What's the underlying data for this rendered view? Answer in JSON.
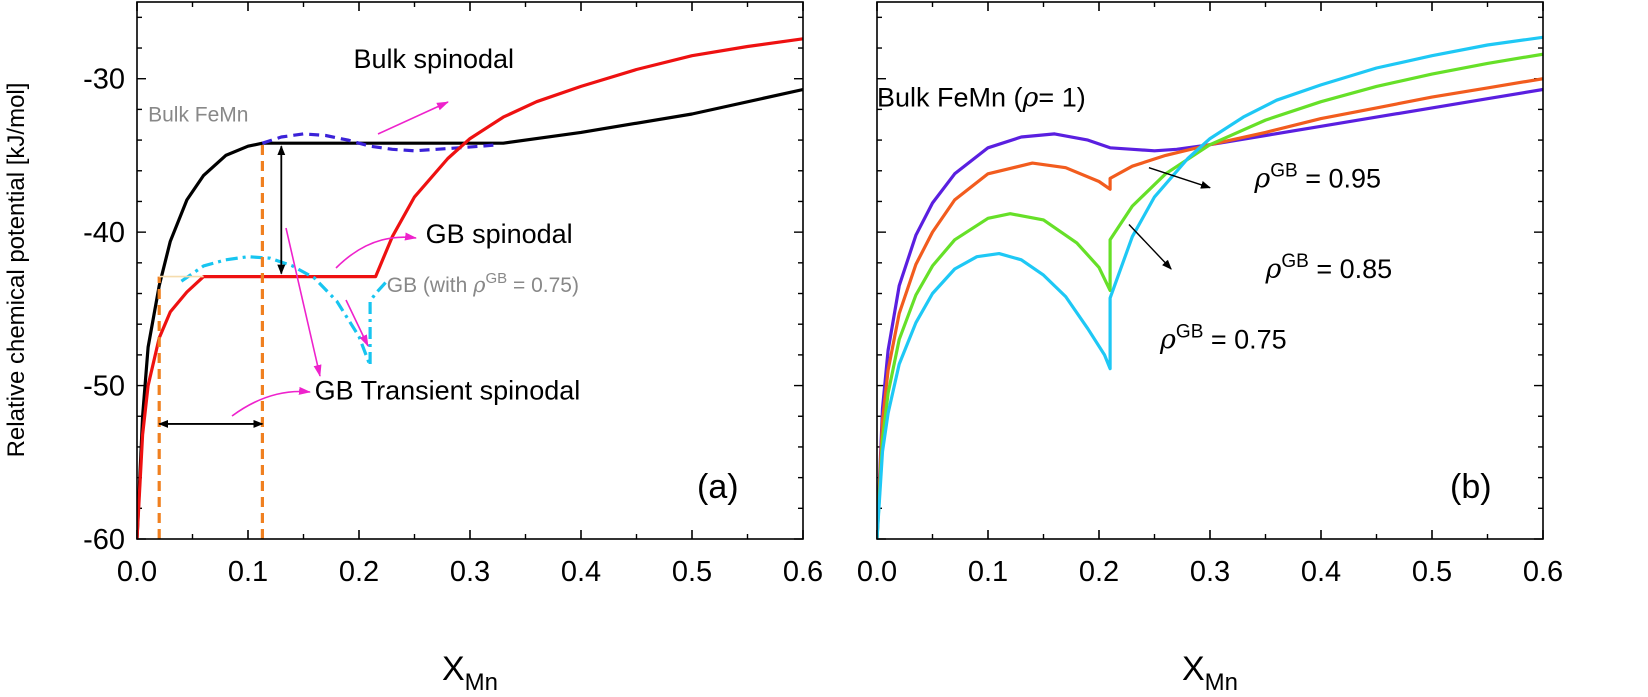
{
  "chart_data": [
    {
      "panel": "a",
      "type": "line",
      "panel_label": "(a)",
      "ylabel": "Relative chemical potential [kJ/mol]",
      "xlabel_main": "X",
      "xlabel_sub": "Mn",
      "xlim": [
        0,
        0.6
      ],
      "ylim": [
        -60,
        -25
      ],
      "xticks": [
        0.0,
        0.1,
        0.2,
        0.3,
        0.4,
        0.5,
        0.6
      ],
      "xtick_labels": [
        "0.0",
        "0.1",
        "0.2",
        "0.3",
        "0.4",
        "0.5",
        "0.6"
      ],
      "yticks": [
        -60,
        -50,
        -40,
        -30
      ],
      "ytick_labels": [
        "-60",
        "-50",
        "-40",
        "-30"
      ],
      "series": [
        {
          "name": "Bulk FeMn (common tangent)",
          "color": "#000000",
          "style": "solid",
          "x": [
            0.0,
            0.005,
            0.01,
            0.02,
            0.03,
            0.045,
            0.06,
            0.08,
            0.1,
            0.113,
            0.2,
            0.33,
            0.4,
            0.5,
            0.6
          ],
          "y": [
            -60,
            -52,
            -47.5,
            -43.5,
            -40.6,
            -37.9,
            -36.3,
            -35.0,
            -34.4,
            -34.2,
            -34.2,
            -34.2,
            -33.5,
            -32.3,
            -30.7
          ]
        },
        {
          "name": "Bulk spinodal (unstable branch)",
          "color": "#3b22d8",
          "style": "dashed",
          "x": [
            0.113,
            0.13,
            0.15,
            0.17,
            0.19,
            0.21,
            0.23,
            0.25,
            0.27,
            0.29,
            0.31,
            0.325
          ],
          "y": [
            -34.2,
            -33.8,
            -33.6,
            -33.7,
            -34.0,
            -34.4,
            -34.6,
            -34.7,
            -34.6,
            -34.5,
            -34.4,
            -34.3
          ]
        },
        {
          "name": "GB (with rho_GB = 0.75)",
          "color": "#ee1111",
          "style": "solid",
          "x": [
            0.0,
            0.005,
            0.01,
            0.02,
            0.03,
            0.045,
            0.06,
            0.08,
            0.12,
            0.18,
            0.215,
            0.23,
            0.25,
            0.28,
            0.3,
            0.33,
            0.36,
            0.4,
            0.45,
            0.5,
            0.55,
            0.6
          ],
          "y": [
            -60,
            -53.2,
            -50.0,
            -46.9,
            -45.2,
            -43.9,
            -42.9,
            -42.9,
            -42.9,
            -42.9,
            -42.9,
            -40.3,
            -37.7,
            -35.2,
            -33.9,
            -32.5,
            -31.5,
            -30.5,
            -29.4,
            -28.5,
            -27.9,
            -27.4
          ]
        },
        {
          "name": "GB transient spinodal",
          "color": "#17c5f0",
          "style": "dashdot",
          "x": [
            0.04,
            0.06,
            0.08,
            0.1,
            0.12,
            0.14,
            0.16,
            0.18,
            0.2,
            0.21,
            0.21,
            0.215,
            0.225
          ],
          "y": [
            -43.2,
            -42.2,
            -41.8,
            -41.6,
            -41.7,
            -42.2,
            -43.0,
            -44.5,
            -46.8,
            -48.7,
            -44.5,
            -44.0,
            -43.2
          ]
        },
        {
          "name": "Bulk tangent point",
          "color": "#f08020",
          "style": "dashed",
          "x": [
            0.113,
            0.113
          ],
          "y": [
            -60,
            -34.2
          ]
        },
        {
          "name": "GB tangent point",
          "color": "#f08020",
          "style": "dashed",
          "x": [
            0.02,
            0.02
          ],
          "y": [
            -60,
            -42.9
          ]
        },
        {
          "name": "GB common tangent guide",
          "color": "#f5dcae",
          "style": "thin",
          "x": [
            0.02,
            0.06
          ],
          "y": [
            -42.9,
            -42.9
          ]
        }
      ],
      "arrows": [
        {
          "kind": "double",
          "color": "#000000",
          "x": [
            0.13,
            0.13
          ],
          "y": [
            -34.4,
            -42.7
          ]
        },
        {
          "kind": "double",
          "color": "#000000",
          "x": [
            0.02,
            0.113
          ],
          "y": [
            -52.5,
            -52.5
          ]
        }
      ],
      "annotations": [
        {
          "text": "Bulk spinodal",
          "color": "#000000",
          "x": 0.195,
          "y": -29.3
        },
        {
          "text": "Bulk FeMn",
          "color": "#888888",
          "x": 0.01,
          "y": -32.8
        },
        {
          "text": "GB spinodal",
          "color": "#000000",
          "x": 0.26,
          "y": -40.7
        },
        {
          "text_prefix": "GB (with ",
          "rho": "ρ",
          "sup": "GB",
          "text_suffix": " = 0.75)",
          "color": "#888888",
          "x": 0.225,
          "y": -43.9
        },
        {
          "text": "GB Transient spinodal",
          "color": "#000000",
          "x": 0.16,
          "y": -50.9
        }
      ]
    },
    {
      "panel": "b",
      "type": "line",
      "panel_label": "(b)",
      "xlabel_main": "X",
      "xlabel_sub": "Mn",
      "xlim": [
        0,
        0.6
      ],
      "ylim": [
        -60,
        -25
      ],
      "xticks": [
        0.0,
        0.1,
        0.2,
        0.3,
        0.4,
        0.5,
        0.6
      ],
      "xtick_labels": [
        "0.0",
        "0.1",
        "0.2",
        "0.3",
        "0.4",
        "0.5",
        "0.6"
      ],
      "series": [
        {
          "name": "Bulk FeMn (rho = 1)",
          "color": "#5a1fe0",
          "style": "solid",
          "x": [
            0.0,
            0.005,
            0.01,
            0.02,
            0.035,
            0.05,
            0.07,
            0.1,
            0.13,
            0.16,
            0.19,
            0.21,
            0.23,
            0.25,
            0.27,
            0.3,
            0.35,
            0.4,
            0.45,
            0.5,
            0.55,
            0.6
          ],
          "y": [
            -60,
            -51.5,
            -47.7,
            -43.5,
            -40.2,
            -38.1,
            -36.2,
            -34.5,
            -33.8,
            -33.6,
            -34.0,
            -34.5,
            -34.6,
            -34.7,
            -34.6,
            -34.3,
            -33.7,
            -33.1,
            -32.5,
            -31.9,
            -31.3,
            -30.7
          ]
        },
        {
          "name": "rho_GB = 0.95",
          "color": "#f25c1e",
          "style": "solid",
          "x": [
            0.0,
            0.005,
            0.01,
            0.02,
            0.035,
            0.05,
            0.07,
            0.1,
            0.14,
            0.17,
            0.2,
            0.21,
            0.21,
            0.23,
            0.26,
            0.3,
            0.35,
            0.4,
            0.45,
            0.5,
            0.55,
            0.6
          ],
          "y": [
            -60,
            -52.3,
            -49.0,
            -45.3,
            -42.1,
            -40.0,
            -37.9,
            -36.2,
            -35.5,
            -35.8,
            -36.7,
            -37.2,
            -36.5,
            -35.7,
            -35.0,
            -34.3,
            -33.5,
            -32.6,
            -31.9,
            -31.2,
            -30.6,
            -30.0
          ]
        },
        {
          "name": "rho_GB = 0.85",
          "color": "#66e028",
          "style": "solid",
          "x": [
            0.0,
            0.005,
            0.01,
            0.02,
            0.035,
            0.05,
            0.07,
            0.1,
            0.12,
            0.15,
            0.18,
            0.2,
            0.21,
            0.21,
            0.23,
            0.26,
            0.3,
            0.35,
            0.4,
            0.45,
            0.5,
            0.55,
            0.6
          ],
          "y": [
            -60,
            -53.5,
            -50.5,
            -47.0,
            -44.1,
            -42.2,
            -40.5,
            -39.1,
            -38.8,
            -39.2,
            -40.7,
            -42.3,
            -43.8,
            -40.5,
            -38.3,
            -36.2,
            -34.3,
            -32.7,
            -31.5,
            -30.5,
            -29.7,
            -29.0,
            -28.4
          ]
        },
        {
          "name": "rho_GB = 0.75",
          "color": "#1ec8f5",
          "style": "solid",
          "x": [
            0.0,
            0.005,
            0.01,
            0.02,
            0.035,
            0.05,
            0.07,
            0.09,
            0.11,
            0.13,
            0.15,
            0.17,
            0.19,
            0.205,
            0.21,
            0.21,
            0.23,
            0.25,
            0.28,
            0.3,
            0.33,
            0.36,
            0.4,
            0.45,
            0.5,
            0.55,
            0.6
          ],
          "y": [
            -60,
            -54.3,
            -51.8,
            -48.6,
            -45.9,
            -44.0,
            -42.4,
            -41.6,
            -41.4,
            -41.8,
            -42.8,
            -44.2,
            -46.3,
            -48.0,
            -48.9,
            -44.3,
            -40.3,
            -37.7,
            -35.2,
            -33.9,
            -32.5,
            -31.4,
            -30.4,
            -29.3,
            -28.5,
            -27.8,
            -27.3
          ]
        }
      ],
      "annotations": [
        {
          "text_prefix": "Bulk FeMn (",
          "rho": "ρ",
          "text_suffix": "= 1)",
          "color": "#000000",
          "x": 0.0,
          "y": -31.8
        },
        {
          "rho": "ρ",
          "sup": "GB",
          "text_suffix": " = 0.95",
          "color": "#000000",
          "x": 0.34,
          "y": -37.1
        },
        {
          "rho": "ρ",
          "sup": "GB",
          "text_suffix": " = 0.85",
          "color": "#000000",
          "x": 0.35,
          "y": -43.0
        },
        {
          "rho": "ρ",
          "sup": "GB",
          "text_suffix": " = 0.75",
          "color": "#000000",
          "x": 0.255,
          "y": -47.6
        }
      ],
      "leaders": [
        {
          "color": "#000000",
          "x": [
            0.245,
            0.3
          ],
          "y": [
            -35.8,
            -37.1
          ]
        },
        {
          "color": "#000000",
          "x": [
            0.227,
            0.265
          ],
          "y": [
            -39.5,
            -42.4
          ]
        }
      ]
    }
  ]
}
